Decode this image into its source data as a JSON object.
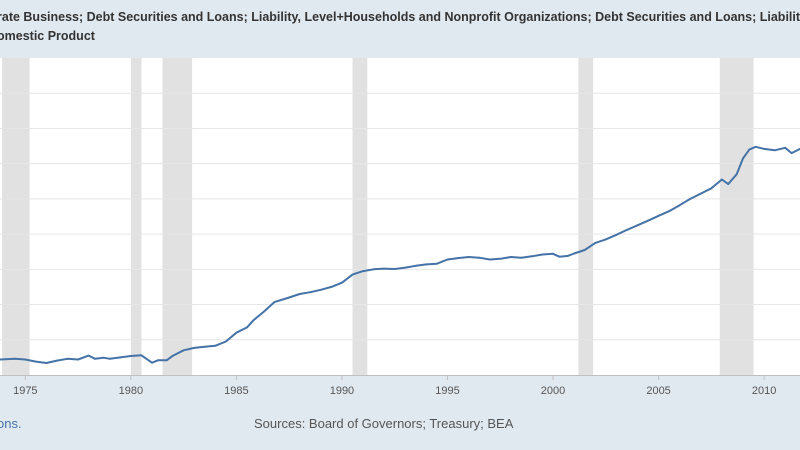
{
  "title_lines": [
    "rate Business; Debt Securities and Loans; Liability, Level+Households and Nonprofit Organizations; Debt Securities and Loans; Liability, Level+",
    "omestic Product"
  ],
  "footer": {
    "left_text": "ons.",
    "sources": "Sources: Board of Governors; Treasury; BEA"
  },
  "colors": {
    "series": "#4572a7",
    "recession": "#e1e1e1",
    "plot_bg": "#ffffff",
    "page_bg": "#e1e9f0",
    "grid": "#e6e6e6"
  },
  "chart_data": {
    "type": "line",
    "x_axis": {
      "range": [
        1973.8,
        2011.7
      ],
      "ticks": [
        1975,
        1980,
        1985,
        1990,
        1995,
        2000,
        2005,
        2010
      ]
    },
    "y_axis": {
      "range": [
        0,
        9
      ],
      "tick_labels_visible": false,
      "gridlines": 9
    },
    "grid": true,
    "recessions": [
      [
        1973.9,
        1975.2
      ],
      [
        1980.0,
        1980.5
      ],
      [
        1981.5,
        1982.9
      ],
      [
        1990.5,
        1991.2
      ],
      [
        2001.2,
        2001.9
      ],
      [
        2007.9,
        2009.5
      ]
    ],
    "series": [
      {
        "points": [
          [
            1973.8,
            0.44
          ],
          [
            1974.5,
            0.46
          ],
          [
            1975.0,
            0.44
          ],
          [
            1975.5,
            0.38
          ],
          [
            1976.0,
            0.34
          ],
          [
            1976.5,
            0.41
          ],
          [
            1977.0,
            0.46
          ],
          [
            1977.5,
            0.44
          ],
          [
            1978.0,
            0.55
          ],
          [
            1978.3,
            0.46
          ],
          [
            1978.7,
            0.49
          ],
          [
            1979.0,
            0.46
          ],
          [
            1979.5,
            0.5
          ],
          [
            1980.0,
            0.54
          ],
          [
            1980.5,
            0.56
          ],
          [
            1981.0,
            0.35
          ],
          [
            1981.3,
            0.42
          ],
          [
            1981.7,
            0.42
          ],
          [
            1982.0,
            0.55
          ],
          [
            1982.5,
            0.7
          ],
          [
            1983.0,
            0.77
          ],
          [
            1983.5,
            0.8
          ],
          [
            1984.0,
            0.83
          ],
          [
            1984.5,
            0.95
          ],
          [
            1985.0,
            1.2
          ],
          [
            1985.5,
            1.35
          ],
          [
            1985.8,
            1.55
          ],
          [
            1986.3,
            1.8
          ],
          [
            1986.8,
            2.07
          ],
          [
            1987.5,
            2.2
          ],
          [
            1988.0,
            2.3
          ],
          [
            1988.5,
            2.35
          ],
          [
            1989.0,
            2.42
          ],
          [
            1989.5,
            2.5
          ],
          [
            1990.0,
            2.62
          ],
          [
            1990.5,
            2.85
          ],
          [
            1991.0,
            2.95
          ],
          [
            1991.5,
            3.0
          ],
          [
            1992.0,
            3.02
          ],
          [
            1992.5,
            3.01
          ],
          [
            1993.0,
            3.05
          ],
          [
            1993.5,
            3.1
          ],
          [
            1994.0,
            3.14
          ],
          [
            1994.5,
            3.16
          ],
          [
            1995.0,
            3.28
          ],
          [
            1995.5,
            3.32
          ],
          [
            1996.0,
            3.35
          ],
          [
            1996.5,
            3.33
          ],
          [
            1997.0,
            3.28
          ],
          [
            1997.5,
            3.3
          ],
          [
            1998.0,
            3.35
          ],
          [
            1998.5,
            3.33
          ],
          [
            1999.0,
            3.37
          ],
          [
            1999.5,
            3.42
          ],
          [
            2000.0,
            3.44
          ],
          [
            2000.3,
            3.36
          ],
          [
            2000.7,
            3.38
          ],
          [
            2001.0,
            3.45
          ],
          [
            2001.5,
            3.55
          ],
          [
            2002.0,
            3.75
          ],
          [
            2002.5,
            3.85
          ],
          [
            2003.0,
            3.98
          ],
          [
            2003.5,
            4.12
          ],
          [
            2004.0,
            4.25
          ],
          [
            2004.5,
            4.38
          ],
          [
            2005.0,
            4.52
          ],
          [
            2005.5,
            4.65
          ],
          [
            2006.0,
            4.82
          ],
          [
            2006.5,
            5.0
          ],
          [
            2007.0,
            5.15
          ],
          [
            2007.5,
            5.3
          ],
          [
            2008.0,
            5.55
          ],
          [
            2008.3,
            5.42
          ],
          [
            2008.7,
            5.7
          ],
          [
            2009.0,
            6.15
          ],
          [
            2009.3,
            6.4
          ],
          [
            2009.6,
            6.48
          ],
          [
            2010.0,
            6.42
          ],
          [
            2010.5,
            6.38
          ],
          [
            2011.0,
            6.45
          ],
          [
            2011.3,
            6.3
          ],
          [
            2011.7,
            6.42
          ]
        ]
      }
    ]
  }
}
